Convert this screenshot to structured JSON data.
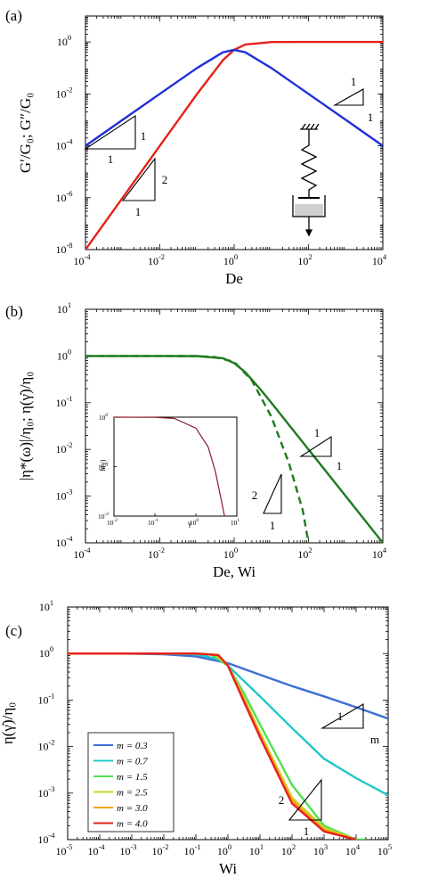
{
  "chart_data": [
    {
      "type": "line",
      "panel": "(a)",
      "xlabel": "De",
      "ylabel": "G′/G₀;  G″/G₀",
      "xscale": "log",
      "yscale": "log",
      "xlim": [
        0.0001,
        10000
      ],
      "ylim": [
        1e-08,
        10
      ],
      "xticks": [
        -4,
        -2,
        0,
        2,
        4
      ],
      "yticks": [
        -8,
        -6,
        -4,
        -2,
        0
      ],
      "grid": false,
      "series": [
        {
          "color": "#e8201a",
          "x": [
            0.0001,
            0.001,
            0.01,
            0.1,
            0.5,
            1,
            2,
            10,
            100,
            1000,
            10000
          ],
          "y": [
            1e-08,
            1e-06,
            0.0001,
            0.0099,
            0.2,
            0.5,
            0.8,
            0.99,
            1,
            1,
            1
          ]
        },
        {
          "color": "#1f2fd8",
          "x": [
            0.0001,
            0.001,
            0.01,
            0.1,
            0.5,
            1,
            2,
            10,
            100,
            1000,
            10000
          ],
          "y": [
            0.0001,
            0.001,
            0.01,
            0.099,
            0.4,
            0.5,
            0.4,
            0.099,
            0.01,
            0.001,
            0.0001
          ]
        }
      ],
      "slope_markers": [
        {
          "rise": "1",
          "run": "1"
        },
        {
          "rise": "2",
          "run": "1"
        },
        {
          "rise": "1",
          "run": "1",
          "orientation": "descending"
        }
      ],
      "schematic": "maxwell-element"
    },
    {
      "type": "line",
      "panel": "(b)",
      "xlabel": "De, Wi",
      "ylabel": "|η*(ω)|/η₀;  η(γ̇)/η₀",
      "xscale": "log",
      "yscale": "log",
      "xlim": [
        0.0001,
        10000
      ],
      "ylim": [
        0.0001,
        10
      ],
      "xticks": [
        -4,
        -2,
        0,
        2,
        4
      ],
      "yticks": [
        -4,
        -3,
        -2,
        -1,
        0,
        1
      ],
      "grid": false,
      "series": [
        {
          "color": "#1d7a1d",
          "style": "solid",
          "x": [
            0.0001,
            0.01,
            0.1,
            0.5,
            1,
            2,
            5,
            10,
            100,
            1000,
            10000
          ],
          "y": [
            1,
            1,
            0.995,
            0.894,
            0.707,
            0.447,
            0.196,
            0.0995,
            0.01,
            0.001,
            0.0001
          ]
        },
        {
          "color": "#1d7a1d",
          "style": "dashed",
          "x": [
            0.0001,
            0.01,
            0.1,
            0.3,
            1,
            3,
            10,
            30,
            70,
            100
          ],
          "y": [
            1,
            1,
            0.99,
            0.95,
            0.75,
            0.3,
            0.05,
            0.005,
            0.0005,
            0.0001
          ]
        }
      ],
      "slope_markers": [
        {
          "rise": "1",
          "run": "1"
        },
        {
          "rise": "2",
          "run": "1"
        }
      ],
      "inset": {
        "xlabel": "γ",
        "ylabel": "h(γ)",
        "xscale": "log",
        "yscale": "log",
        "xlim": [
          0.01,
          10
        ],
        "ylim": [
          0.01,
          1
        ],
        "xticks": [
          -2,
          -1,
          0,
          1
        ],
        "yticks": [
          -2,
          -1,
          0
        ],
        "series": [
          {
            "color": "#8b1a2c",
            "x": [
              0.01,
              0.1,
              0.3,
              1,
              2,
              3,
              4,
              5
            ],
            "y": [
              1,
              0.99,
              0.94,
              0.6,
              0.25,
              0.08,
              0.025,
              0.01
            ]
          }
        ]
      }
    },
    {
      "type": "line",
      "panel": "(c)",
      "xlabel": "Wi",
      "ylabel": "η(γ̇)/η₀",
      "xscale": "log",
      "yscale": "log",
      "xlim": [
        1e-05,
        100000
      ],
      "ylim": [
        0.0001,
        10
      ],
      "xticks": [
        -5,
        -4,
        -3,
        -2,
        -1,
        0,
        1,
        2,
        3,
        4,
        5
      ],
      "yticks": [
        -4,
        -3,
        -2,
        -1,
        0,
        1
      ],
      "grid": false,
      "legend": "bottom-left",
      "series": [
        {
          "name": "m = 0.3",
          "color": "#3d6fd4",
          "x": [
            1e-05,
            0.001,
            0.01,
            0.1,
            1,
            10,
            100,
            1000,
            10000,
            100000
          ],
          "y": [
            1,
            0.99,
            0.96,
            0.87,
            0.62,
            0.35,
            0.2,
            0.12,
            0.07,
            0.04
          ]
        },
        {
          "name": "m = 0.7",
          "color": "#1fc7c9",
          "x": [
            1e-05,
            0.001,
            0.01,
            0.1,
            0.5,
            1,
            10,
            100,
            1000,
            10000,
            100000
          ],
          "y": [
            1,
            1,
            0.99,
            0.97,
            0.75,
            0.55,
            0.12,
            0.025,
            0.0055,
            0.0021,
            0.0009
          ]
        },
        {
          "name": "m = 1.5",
          "color": "#4fe055",
          "x": [
            1e-05,
            0.01,
            0.1,
            0.3,
            1,
            3,
            10,
            100,
            1000,
            10000,
            20000
          ],
          "y": [
            1,
            1,
            1,
            0.95,
            0.55,
            0.15,
            0.03,
            0.0015,
            0.0002,
            0.0001,
            0.0001
          ]
        },
        {
          "name": "m = 2.5",
          "color": "#c9d629",
          "x": [
            1e-05,
            0.01,
            0.1,
            0.4,
            1,
            3,
            10,
            100,
            1000,
            10000
          ],
          "y": [
            1,
            1,
            1,
            0.95,
            0.55,
            0.12,
            0.02,
            0.0008,
            0.00018,
            0.0001
          ]
        },
        {
          "name": "m = 3.0",
          "color": "#f5a21a",
          "x": [
            1e-05,
            0.01,
            0.1,
            0.5,
            1,
            3,
            10,
            100,
            1000,
            10000
          ],
          "y": [
            1,
            1,
            1,
            0.93,
            0.55,
            0.11,
            0.018,
            0.0007,
            0.00016,
            0.0001
          ]
        },
        {
          "name": "m = 4.0",
          "color": "#e8201a",
          "x": [
            1e-05,
            0.01,
            0.1,
            0.5,
            1,
            3,
            10,
            100,
            1000,
            10000
          ],
          "y": [
            1,
            1,
            1,
            0.92,
            0.55,
            0.1,
            0.016,
            0.0006,
            0.00015,
            0.0001
          ]
        }
      ],
      "slope_markers": [
        {
          "rise": "m",
          "run": "1"
        },
        {
          "rise": "2",
          "run": "1"
        }
      ]
    }
  ]
}
